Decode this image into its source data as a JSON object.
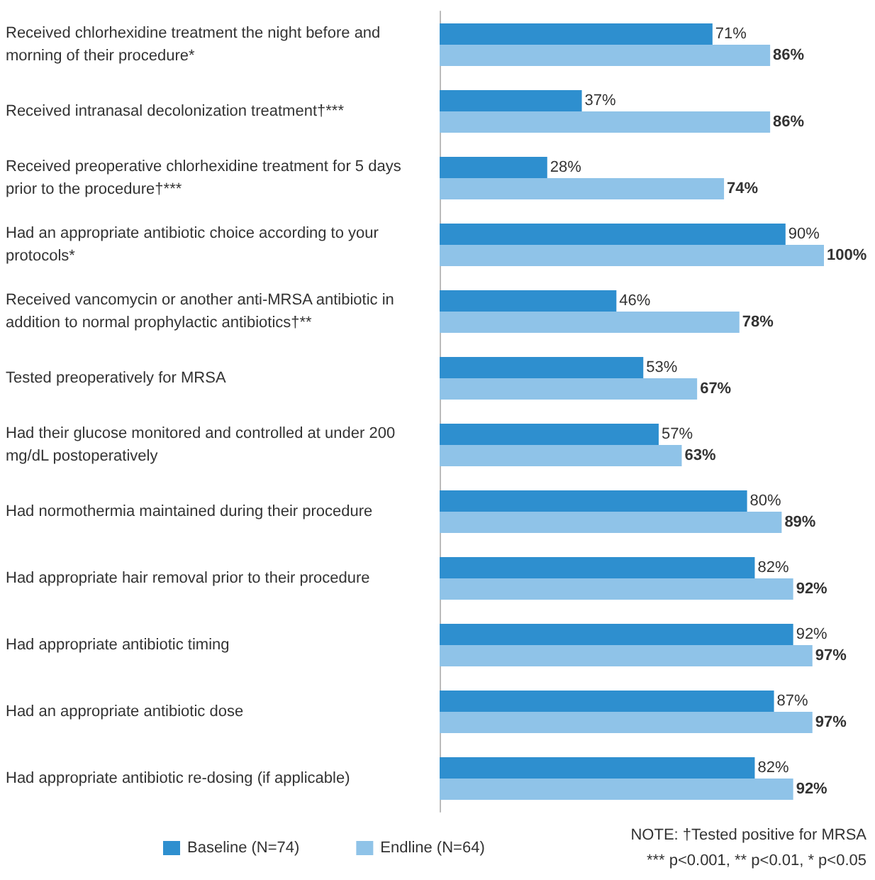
{
  "chart_data": {
    "type": "bar",
    "orientation": "horizontal",
    "legend": "bottom",
    "categories": [
      "Received chlorhexidine treatment the night before and morning of their procedure*",
      "Received intranasal decolonization treatment†***",
      "Received preoperative chlorhexidine treatment for 5 days prior to the procedure†***",
      "Had an appropriate antibiotic choice according to your protocols*",
      "Received vancomycin or another anti-MRSA antibiotic in addition to normal prophylactic antibiotics†**",
      "Tested preoperatively for MRSA",
      "Had their glucose monitored and controlled at under 200 mg/dL postoperatively",
      "Had normothermia maintained during their procedure",
      "Had appropriate hair removal prior to their procedure",
      "Had appropriate antibiotic timing",
      "Had an appropriate antibiotic dose",
      "Had appropriate antibiotic re-dosing (if applicable)"
    ],
    "series": [
      {
        "name": "Baseline (N=74)",
        "color": "#2e8fcf",
        "values": [
          71,
          37,
          28,
          90,
          46,
          53,
          57,
          80,
          82,
          92,
          87,
          82
        ],
        "value_labels": [
          "71%",
          "37%",
          "28%",
          "90%",
          "46%",
          "53%",
          "57%",
          "80%",
          "82%",
          "92%",
          "87%",
          "82%"
        ]
      },
      {
        "name": "Endline (N=64)",
        "color": "#8fc3e8",
        "values": [
          86,
          86,
          74,
          100,
          78,
          67,
          63,
          89,
          92,
          97,
          97,
          92
        ],
        "value_labels": [
          "86%",
          "86%",
          "74%",
          "100%",
          "78%",
          "67%",
          "63%",
          "89%",
          "92%",
          "97%",
          "97%",
          "92%"
        ]
      }
    ],
    "annotations": [
      "NOTE: †Tested positive for MRSA",
      "*** p<0.001, ** p<0.01, * p<0.05"
    ]
  }
}
